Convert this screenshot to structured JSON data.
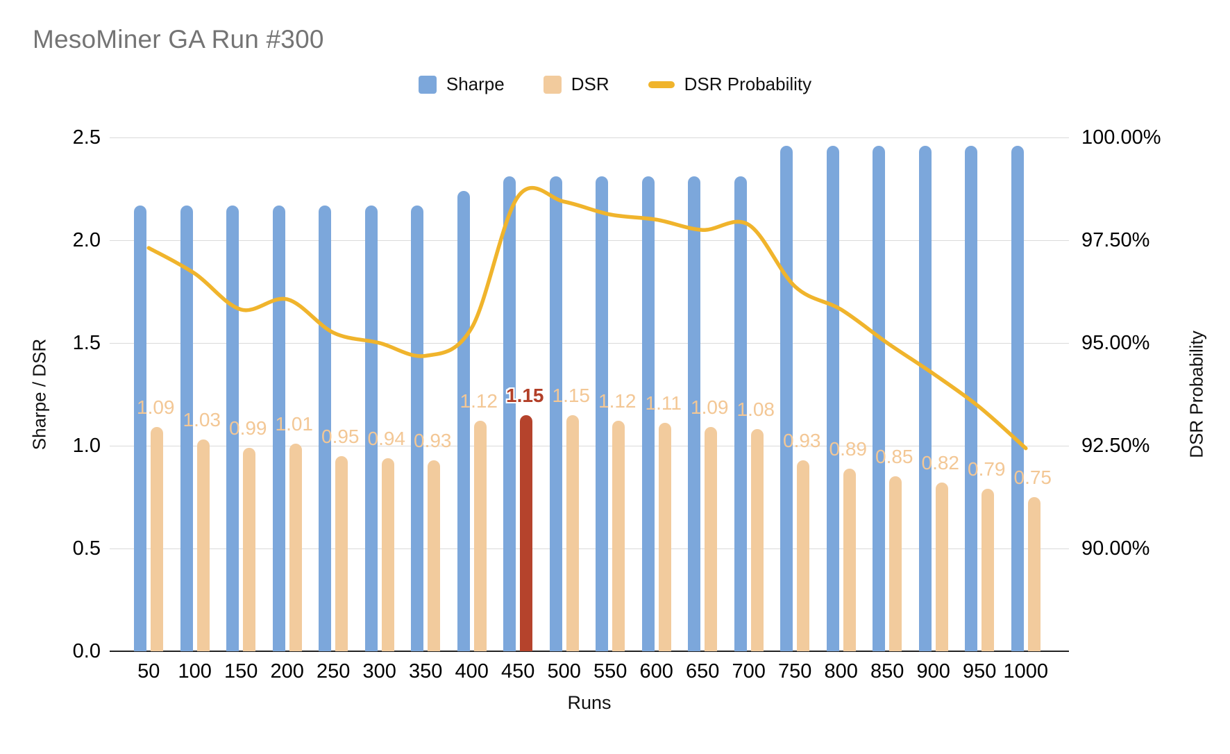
{
  "title": "MesoMiner GA Run #300",
  "chart_data": {
    "type": "combo",
    "title": "MesoMiner GA Run #300",
    "x_title": "Runs",
    "categories": [
      "50",
      "100",
      "150",
      "200",
      "250",
      "300",
      "350",
      "400",
      "450",
      "500",
      "550",
      "600",
      "650",
      "700",
      "750",
      "800",
      "850",
      "900",
      "950",
      "1000"
    ],
    "left_axis": {
      "title": "Sharpe / DSR",
      "min": 0,
      "max": 2.5,
      "ticks": [
        "2.5",
        "2.0",
        "1.5",
        "1.0",
        "0.5",
        "0.0"
      ]
    },
    "right_axis": {
      "title": "DSR Probability",
      "min": 90,
      "max": 100,
      "ticks": [
        "100.00%",
        "97.50%",
        "95.00%",
        "92.50%",
        "90.00%"
      ]
    },
    "grid": true,
    "legend_position": "top",
    "series": [
      {
        "name": "Sharpe",
        "type": "bar",
        "axis": "left",
        "color": "#7CA7DB",
        "values": [
          2.17,
          2.17,
          2.17,
          2.17,
          2.17,
          2.17,
          2.17,
          2.24,
          2.31,
          2.31,
          2.31,
          2.31,
          2.31,
          2.31,
          2.46,
          2.46,
          2.46,
          2.46,
          2.46,
          2.46
        ]
      },
      {
        "name": "DSR",
        "type": "bar",
        "axis": "left",
        "color": "#F2CB9D",
        "show_labels": true,
        "label_color": "#F3C795",
        "values": [
          1.09,
          1.03,
          0.99,
          1.01,
          0.95,
          0.94,
          0.93,
          1.12,
          1.15,
          1.15,
          1.12,
          1.11,
          1.09,
          1.08,
          0.93,
          0.89,
          0.85,
          0.82,
          0.79,
          0.75
        ],
        "labels": [
          "1.09",
          "1.03",
          "0.99",
          "1.01",
          "0.95",
          "0.94",
          "0.93",
          "1.12",
          "1.15",
          "1.15",
          "1.12",
          "1.11",
          "1.09",
          "1.08",
          "0.93",
          "0.89",
          "0.85",
          "0.82",
          "0.79",
          "0.75"
        ],
        "highlight": {
          "index": 8,
          "category": "450",
          "bar_color": "#B5432C",
          "label_color": "#B23F28"
        }
      },
      {
        "name": "DSR Probability",
        "type": "line",
        "axis": "right",
        "color": "#F0B42C",
        "values": [
          97.85,
          97.35,
          96.65,
          96.85,
          96.2,
          96.0,
          95.75,
          96.3,
          98.85,
          98.75,
          98.5,
          98.4,
          98.2,
          98.3,
          97.1,
          96.65,
          96.0,
          95.4,
          94.75,
          93.95
        ]
      }
    ]
  }
}
